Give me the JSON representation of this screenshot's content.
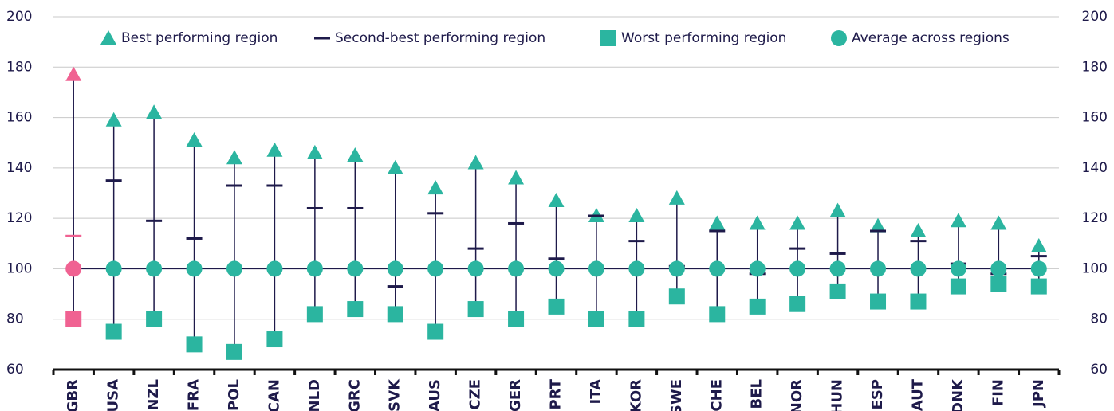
{
  "chart_data": {
    "type": "range-dot",
    "categories": [
      "GBR",
      "USA",
      "NZL",
      "FRA",
      "POL",
      "CAN",
      "NLD",
      "GRC",
      "SVK",
      "AUS",
      "CZE",
      "GER",
      "PRT",
      "ITA",
      "KOR",
      "SWE",
      "CHE",
      "BEL",
      "NOR",
      "HUN",
      "ESP",
      "AUT",
      "DNK",
      "FIN",
      "JPN"
    ],
    "series": [
      {
        "name": "Best performing region",
        "color": "#2bb5a0",
        "marker": "triangle",
        "values": [
          177,
          159,
          162,
          151,
          144,
          147,
          146,
          145,
          140,
          132,
          142,
          136,
          127,
          121,
          121,
          128,
          118,
          118,
          118,
          123,
          117,
          115,
          119,
          118,
          109
        ]
      },
      {
        "name": "Second-best performing region",
        "color": "#1e1a4a",
        "marker": "dash",
        "values": [
          113,
          135,
          119,
          112,
          133,
          133,
          124,
          124,
          93,
          122,
          108,
          118,
          104,
          121,
          111,
          101,
          115,
          98,
          108,
          106,
          115,
          111,
          102,
          98,
          105
        ]
      },
      {
        "name": "Worst performing region",
        "color": "#2bb5a0",
        "marker": "square",
        "values": [
          80,
          75,
          80,
          70,
          67,
          72,
          82,
          84,
          82,
          75,
          84,
          80,
          85,
          80,
          80,
          89,
          82,
          85,
          86,
          91,
          87,
          87,
          93,
          94,
          93
        ]
      },
      {
        "name": "Average across regions",
        "color": "#2bb5a0",
        "marker": "circle",
        "values": [
          100,
          100,
          100,
          100,
          100,
          100,
          100,
          100,
          100,
          100,
          100,
          100,
          100,
          100,
          100,
          100,
          100,
          100,
          100,
          100,
          100,
          100,
          100,
          100,
          100
        ]
      }
    ],
    "highlight": "GBR",
    "highlight_color": "#f06292",
    "ylim": [
      60,
      200
    ],
    "yticks": [
      60,
      80,
      100,
      120,
      140,
      160,
      180,
      200
    ],
    "y2lim": [
      60,
      200
    ],
    "y2ticks": [
      60,
      80,
      100,
      120,
      140,
      160,
      180,
      200
    ],
    "grid": true,
    "legend": "top"
  }
}
